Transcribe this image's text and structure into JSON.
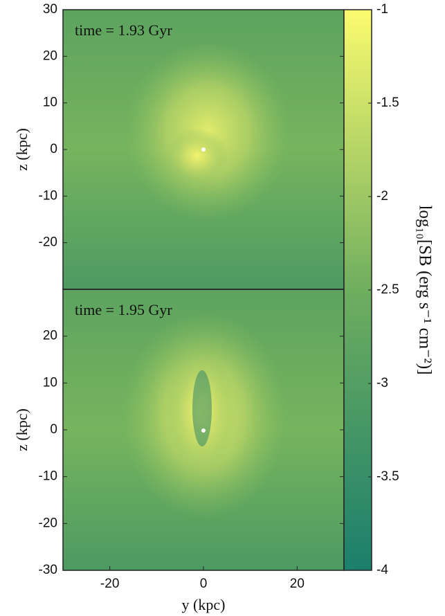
{
  "chart_data": [
    {
      "type": "image",
      "annotation": "time = 1.93 Gyr",
      "ylabel": "z (kpc)",
      "xlim": [
        -30,
        30
      ],
      "ylim": [
        -30,
        30
      ],
      "yticks": [
        30,
        20,
        10,
        0,
        -10,
        -20
      ]
    },
    {
      "type": "image",
      "annotation": "time = 1.95 Gyr",
      "ylabel": "z (kpc)",
      "xlabel": "y (kpc)",
      "xlim": [
        -30,
        30
      ],
      "ylim": [
        -30,
        30
      ],
      "xticks": [
        -20,
        0,
        20
      ],
      "yticks": [
        20,
        10,
        0,
        -10,
        -20,
        -30
      ]
    },
    {
      "type": "colorbar",
      "label": "log₁₀[SB (erg s⁻¹ cm⁻²)]",
      "ylim": [
        -4,
        -1
      ],
      "yticks": [
        -1,
        -1.5,
        -2,
        -2.5,
        -3,
        -3.5,
        -4
      ],
      "colors": [
        "#1b7f6c",
        "#6fae5f",
        "#fbfb6e"
      ]
    }
  ]
}
